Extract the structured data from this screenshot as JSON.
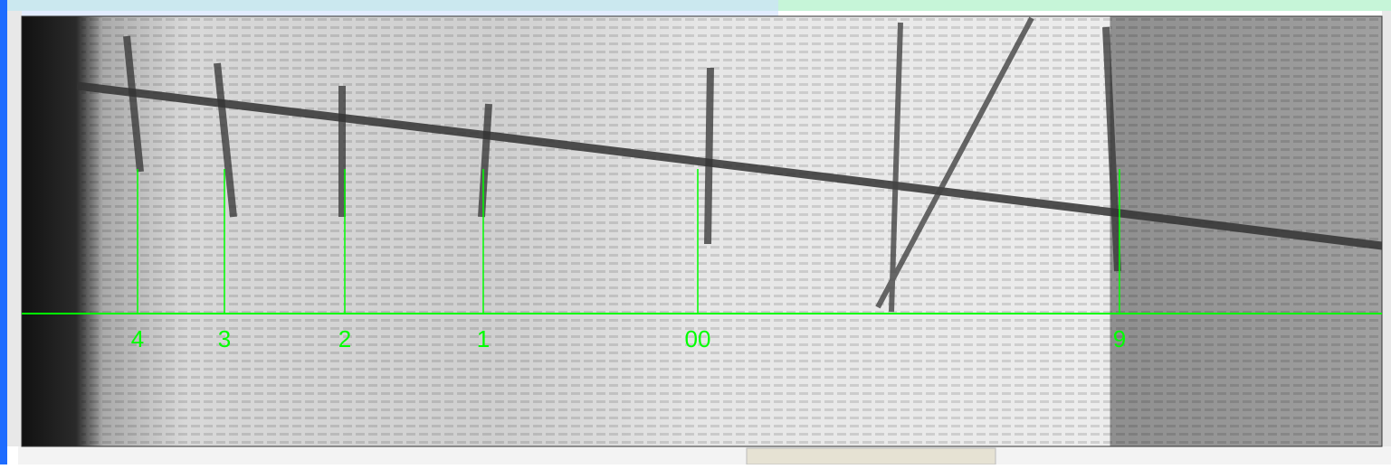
{
  "markers": {
    "labels": [
      "4",
      "3",
      "2",
      "1",
      "00",
      "9"
    ]
  }
}
